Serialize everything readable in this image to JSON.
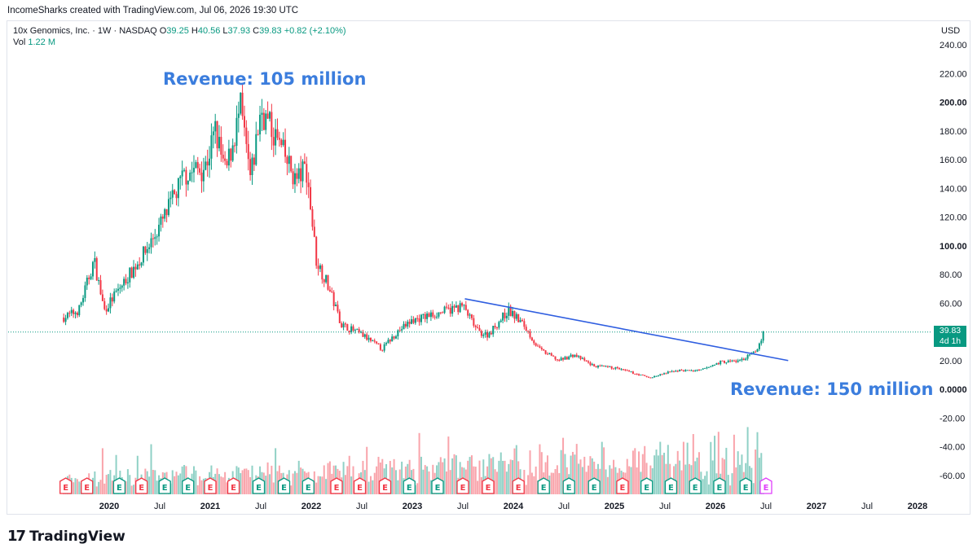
{
  "header": {
    "credit": "IncomeSharks created with TradingView.com, Jul 06, 2026 19:30 UTC"
  },
  "legend": {
    "symbol": "10x Genomics, Inc. · 1W · NASDAQ",
    "o_label": "O",
    "o_value": "39.25",
    "h_label": "H",
    "h_value": "40.56",
    "l_label": "L",
    "l_value": "37.93",
    "c_label": "C",
    "c_value": "39.83",
    "change": "+0.82 (+2.10%)",
    "vol_label": "Vol",
    "vol_value": "1.22 M"
  },
  "price_axis": {
    "currency": "USD",
    "last_price": "39.83",
    "countdown": "4d 1h"
  },
  "annotations": {
    "top": "Revenue: 105 million",
    "bottom": "Revenue: 150 million"
  },
  "branding": {
    "logo_mark": "17",
    "logo_text": "TradingView"
  },
  "colors": {
    "up": "#089981",
    "down": "#f23645",
    "trendline": "#2f5ee0",
    "annotation": "#3b7ddd",
    "earnings_up": "#089981",
    "earnings_down": "#f23645"
  },
  "chart_data": {
    "type": "candlestick",
    "title": "10x Genomics, Inc. · 1W · NASDAQ",
    "ylabel": "USD",
    "ylim": [
      -70,
      250
    ],
    "y_ticks": [
      "240.00",
      "220.00",
      "200.00",
      "180.00",
      "160.00",
      "140.00",
      "120.00",
      "100.00",
      "80.00",
      "60.00",
      "40.00",
      "20.00",
      "0.0000",
      "-20.00",
      "-40.00",
      "-60.00"
    ],
    "y_tick_values": [
      240,
      220,
      200,
      180,
      160,
      140,
      120,
      100,
      80,
      60,
      40,
      20,
      0,
      -20,
      -40,
      -60
    ],
    "bold_ticks": [
      "200.00",
      "100.00",
      "0.0000"
    ],
    "x_ticks": [
      "2020",
      "Jul",
      "2021",
      "Jul",
      "2022",
      "Jul",
      "2023",
      "Jul",
      "2024",
      "Jul",
      "2025",
      "Jul",
      "2026",
      "Jul",
      "2027",
      "Jul",
      "2028"
    ],
    "x_tick_times": [
      2020.0,
      2020.5,
      2021.0,
      2021.5,
      2022.0,
      2022.5,
      2023.0,
      2023.5,
      2024.0,
      2024.5,
      2025.0,
      2025.5,
      2026.0,
      2026.5,
      2027.0,
      2027.5,
      2028.0
    ],
    "bold_x_ticks": [
      "2020",
      "2021",
      "2022",
      "2023",
      "2024",
      "2025",
      "2026",
      "2027",
      "2028"
    ],
    "xlim": [
      2019.42,
      2028.2
    ],
    "price_path": [
      {
        "t": 2019.55,
        "p": 50
      },
      {
        "t": 2019.7,
        "p": 55
      },
      {
        "t": 2019.85,
        "p": 90
      },
      {
        "t": 2019.95,
        "p": 55
      },
      {
        "t": 2020.15,
        "p": 75
      },
      {
        "t": 2020.35,
        "p": 95
      },
      {
        "t": 2020.55,
        "p": 120
      },
      {
        "t": 2020.75,
        "p": 150
      },
      {
        "t": 2020.95,
        "p": 155
      },
      {
        "t": 2021.05,
        "p": 180
      },
      {
        "t": 2021.15,
        "p": 150
      },
      {
        "t": 2021.3,
        "p": 195
      },
      {
        "t": 2021.4,
        "p": 145
      },
      {
        "t": 2021.5,
        "p": 195
      },
      {
        "t": 2021.65,
        "p": 175
      },
      {
        "t": 2021.85,
        "p": 145
      },
      {
        "t": 2021.95,
        "p": 155
      },
      {
        "t": 2022.05,
        "p": 90
      },
      {
        "t": 2022.15,
        "p": 75
      },
      {
        "t": 2022.3,
        "p": 45
      },
      {
        "t": 2022.5,
        "p": 38
      },
      {
        "t": 2022.7,
        "p": 28
      },
      {
        "t": 2022.85,
        "p": 40
      },
      {
        "t": 2023.0,
        "p": 48
      },
      {
        "t": 2023.2,
        "p": 52
      },
      {
        "t": 2023.5,
        "p": 58
      },
      {
        "t": 2023.65,
        "p": 40
      },
      {
        "t": 2023.75,
        "p": 38
      },
      {
        "t": 2023.95,
        "p": 55
      },
      {
        "t": 2024.1,
        "p": 45
      },
      {
        "t": 2024.25,
        "p": 28
      },
      {
        "t": 2024.45,
        "p": 20
      },
      {
        "t": 2024.6,
        "p": 24
      },
      {
        "t": 2024.8,
        "p": 16
      },
      {
        "t": 2025.0,
        "p": 15
      },
      {
        "t": 2025.2,
        "p": 11
      },
      {
        "t": 2025.35,
        "p": 8
      },
      {
        "t": 2025.6,
        "p": 13
      },
      {
        "t": 2025.85,
        "p": 13
      },
      {
        "t": 2026.05,
        "p": 19
      },
      {
        "t": 2026.25,
        "p": 20
      },
      {
        "t": 2026.4,
        "p": 26
      },
      {
        "t": 2026.48,
        "p": 39.83
      }
    ],
    "volume_note": "Volume histogram pane with earnings markers along bottom",
    "trendline": {
      "from": {
        "t": 2023.52,
        "p": 63
      },
      "to": {
        "t": 2026.72,
        "p": 20
      }
    },
    "last_price_line": 39.83
  },
  "earnings_markers": {
    "label": "E",
    "items": [
      {
        "t": 2019.57,
        "kind": "down"
      },
      {
        "t": 2019.78,
        "kind": "down"
      },
      {
        "t": 2020.1,
        "kind": "up"
      },
      {
        "t": 2020.32,
        "kind": "down"
      },
      {
        "t": 2020.55,
        "kind": "up"
      },
      {
        "t": 2020.78,
        "kind": "up"
      },
      {
        "t": 2021.0,
        "kind": "down"
      },
      {
        "t": 2021.23,
        "kind": "down"
      },
      {
        "t": 2021.48,
        "kind": "up"
      },
      {
        "t": 2021.73,
        "kind": "up"
      },
      {
        "t": 2021.97,
        "kind": "up"
      },
      {
        "t": 2022.25,
        "kind": "down"
      },
      {
        "t": 2022.48,
        "kind": "down"
      },
      {
        "t": 2022.73,
        "kind": "down"
      },
      {
        "t": 2022.97,
        "kind": "up"
      },
      {
        "t": 2023.25,
        "kind": "up"
      },
      {
        "t": 2023.5,
        "kind": "down"
      },
      {
        "t": 2023.75,
        "kind": "down"
      },
      {
        "t": 2024.05,
        "kind": "down"
      },
      {
        "t": 2024.3,
        "kind": "up"
      },
      {
        "t": 2024.55,
        "kind": "up"
      },
      {
        "t": 2024.8,
        "kind": "up"
      },
      {
        "t": 2025.08,
        "kind": "down"
      },
      {
        "t": 2025.32,
        "kind": "up"
      },
      {
        "t": 2025.56,
        "kind": "up"
      },
      {
        "t": 2025.8,
        "kind": "up"
      },
      {
        "t": 2026.04,
        "kind": "up"
      },
      {
        "t": 2026.3,
        "kind": "up"
      },
      {
        "t": 2026.5,
        "kind": "next"
      }
    ]
  }
}
